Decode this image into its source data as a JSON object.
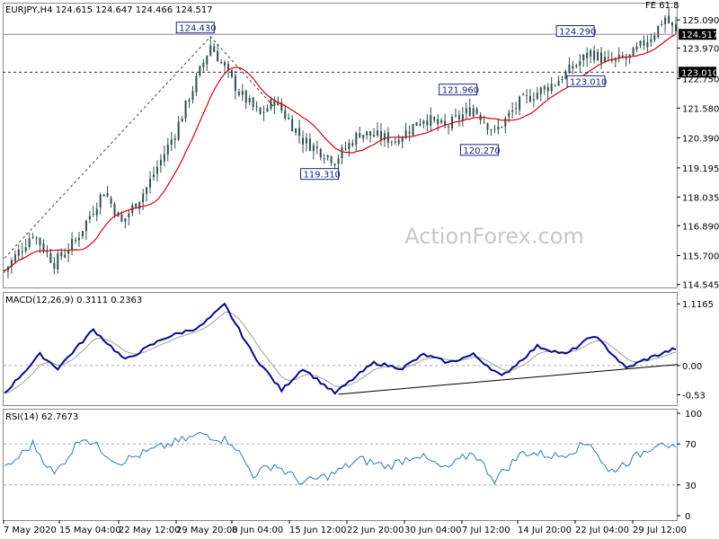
{
  "header": {
    "symbol_info": "EURJPY,H4  124.615 124.647 124.466 124.517",
    "fe_label": "FE 61.8",
    "watermark": "ActionForex.com"
  },
  "colors": {
    "candle": "#2f4f4f",
    "ma": "#d6000f",
    "macd": "#0a0a8c",
    "signal": "#a0a0a0",
    "rsi": "#2a7ac0",
    "price_tag_bg": "#000000",
    "grid": "#c8c8c8",
    "watermark": "#c8c8c8"
  },
  "chart_data": [
    {
      "type": "candlestick",
      "title": "EURJPY,H4",
      "ohlc_last": {
        "open": 124.615,
        "high": 124.647,
        "low": 124.466,
        "close": 124.517
      },
      "ylim": [
        114.5,
        125.6
      ],
      "y_ticks": [
        "125.090",
        "123.970",
        "122.750",
        "121.580",
        "120.390",
        "119.195",
        "118.035",
        "116.890",
        "115.700",
        "114.545"
      ],
      "price_tags": [
        "124.517",
        "123.010"
      ],
      "horizontal_lines": [
        124.517,
        123.01
      ],
      "swing_labels": [
        {
          "text": "124.430",
          "price": 124.43,
          "index": 58
        },
        {
          "text": "119.310",
          "price": 119.31,
          "index": 93
        },
        {
          "text": "121.960",
          "price": 121.96,
          "index": 132
        },
        {
          "text": "120.270",
          "price": 120.27,
          "index": 138
        },
        {
          "text": "124.290",
          "price": 124.29,
          "index": 165
        },
        {
          "text": "123.010",
          "price": 123.01,
          "index": 168
        }
      ],
      "projection_line": [
        {
          "index": 0,
          "price": 115.6
        },
        {
          "index": 58,
          "price": 124.43
        },
        {
          "index": 76,
          "price": 121.6
        }
      ],
      "moving_average": {
        "name": "",
        "color": "#d6000f"
      },
      "series_anchors": [
        {
          "index": 0,
          "price": 115.1
        },
        {
          "index": 8,
          "price": 116.6
        },
        {
          "index": 14,
          "price": 115.4
        },
        {
          "index": 20,
          "price": 116.3
        },
        {
          "index": 28,
          "price": 118.3
        },
        {
          "index": 33,
          "price": 117.0
        },
        {
          "index": 40,
          "price": 118.4
        },
        {
          "index": 48,
          "price": 120.6
        },
        {
          "index": 58,
          "price": 124.1
        },
        {
          "index": 66,
          "price": 122.2
        },
        {
          "index": 72,
          "price": 121.3
        },
        {
          "index": 76,
          "price": 121.9
        },
        {
          "index": 84,
          "price": 120.3
        },
        {
          "index": 93,
          "price": 119.5
        },
        {
          "index": 100,
          "price": 120.6
        },
        {
          "index": 110,
          "price": 120.3
        },
        {
          "index": 118,
          "price": 121.2
        },
        {
          "index": 124,
          "price": 120.8
        },
        {
          "index": 132,
          "price": 121.6
        },
        {
          "index": 138,
          "price": 120.6
        },
        {
          "index": 145,
          "price": 121.8
        },
        {
          "index": 155,
          "price": 122.6
        },
        {
          "index": 165,
          "price": 123.8
        },
        {
          "index": 170,
          "price": 123.4
        },
        {
          "index": 176,
          "price": 123.6
        },
        {
          "index": 183,
          "price": 124.6
        },
        {
          "index": 186,
          "price": 125.2
        },
        {
          "index": 189,
          "price": 124.55
        }
      ],
      "candle_count": 190,
      "x_labels": [
        "7 May 2020",
        "15 May 04:00",
        "22 May 12:00",
        "29 May 20:00",
        "8 Jun 04:00",
        "15 Jun 12:00",
        "22 Jun 20:00",
        "30 Jun 04:00",
        "7 Jul 12:00",
        "14 Jul 20:00",
        "22 Jul 04:00",
        "29 Jul 12:00"
      ]
    },
    {
      "type": "line",
      "title": "MACD(12,26,9) 0.3111 0.2363",
      "macd": 0.3111,
      "signal": 0.2363,
      "ylim": [
        -0.7,
        1.25
      ],
      "y_ticks": [
        "1.1165",
        "0.00",
        "-0.53"
      ],
      "zero_line": 0.0,
      "series": [
        {
          "name": "",
          "anchors": [
            {
              "index": 0,
              "value": -0.5
            },
            {
              "index": 10,
              "value": 0.2
            },
            {
              "index": 15,
              "value": -0.05
            },
            {
              "index": 25,
              "value": 0.65
            },
            {
              "index": 34,
              "value": 0.1
            },
            {
              "index": 45,
              "value": 0.5
            },
            {
              "index": 55,
              "value": 0.7
            },
            {
              "index": 62,
              "value": 1.1
            },
            {
              "index": 70,
              "value": 0.2
            },
            {
              "index": 78,
              "value": -0.45
            },
            {
              "index": 84,
              "value": -0.05
            },
            {
              "index": 93,
              "value": -0.5
            },
            {
              "index": 104,
              "value": 0.05
            },
            {
              "index": 112,
              "value": -0.05
            },
            {
              "index": 118,
              "value": 0.2
            },
            {
              "index": 125,
              "value": 0.05
            },
            {
              "index": 132,
              "value": 0.2
            },
            {
              "index": 140,
              "value": -0.2
            },
            {
              "index": 150,
              "value": 0.35
            },
            {
              "index": 158,
              "value": 0.2
            },
            {
              "index": 166,
              "value": 0.55
            },
            {
              "index": 175,
              "value": -0.05
            },
            {
              "index": 180,
              "value": 0.1
            },
            {
              "index": 189,
              "value": 0.31
            }
          ]
        }
      ],
      "trend_line": [
        {
          "index": 94,
          "value": -0.52
        },
        {
          "index": 190,
          "value": 0.02
        }
      ]
    },
    {
      "type": "line",
      "title": "RSI(14) 62.7673",
      "value": 62.7673,
      "ylim": [
        0,
        100
      ],
      "y_ticks": [
        "100",
        "70",
        "30",
        "0"
      ],
      "levels": [
        70,
        30
      ],
      "series": [
        {
          "name": "",
          "anchors": [
            {
              "index": 0,
              "value": 45
            },
            {
              "index": 8,
              "value": 70
            },
            {
              "index": 14,
              "value": 40
            },
            {
              "index": 22,
              "value": 78
            },
            {
              "index": 32,
              "value": 52
            },
            {
              "index": 45,
              "value": 68
            },
            {
              "index": 56,
              "value": 80
            },
            {
              "index": 64,
              "value": 72
            },
            {
              "index": 70,
              "value": 40
            },
            {
              "index": 76,
              "value": 50
            },
            {
              "index": 84,
              "value": 32
            },
            {
              "index": 92,
              "value": 40
            },
            {
              "index": 100,
              "value": 55
            },
            {
              "index": 108,
              "value": 48
            },
            {
              "index": 116,
              "value": 60
            },
            {
              "index": 124,
              "value": 45
            },
            {
              "index": 132,
              "value": 62
            },
            {
              "index": 138,
              "value": 35
            },
            {
              "index": 146,
              "value": 62
            },
            {
              "index": 156,
              "value": 58
            },
            {
              "index": 165,
              "value": 72
            },
            {
              "index": 170,
              "value": 42
            },
            {
              "index": 178,
              "value": 58
            },
            {
              "index": 185,
              "value": 74
            },
            {
              "index": 189,
              "value": 62.8
            }
          ]
        }
      ]
    }
  ]
}
